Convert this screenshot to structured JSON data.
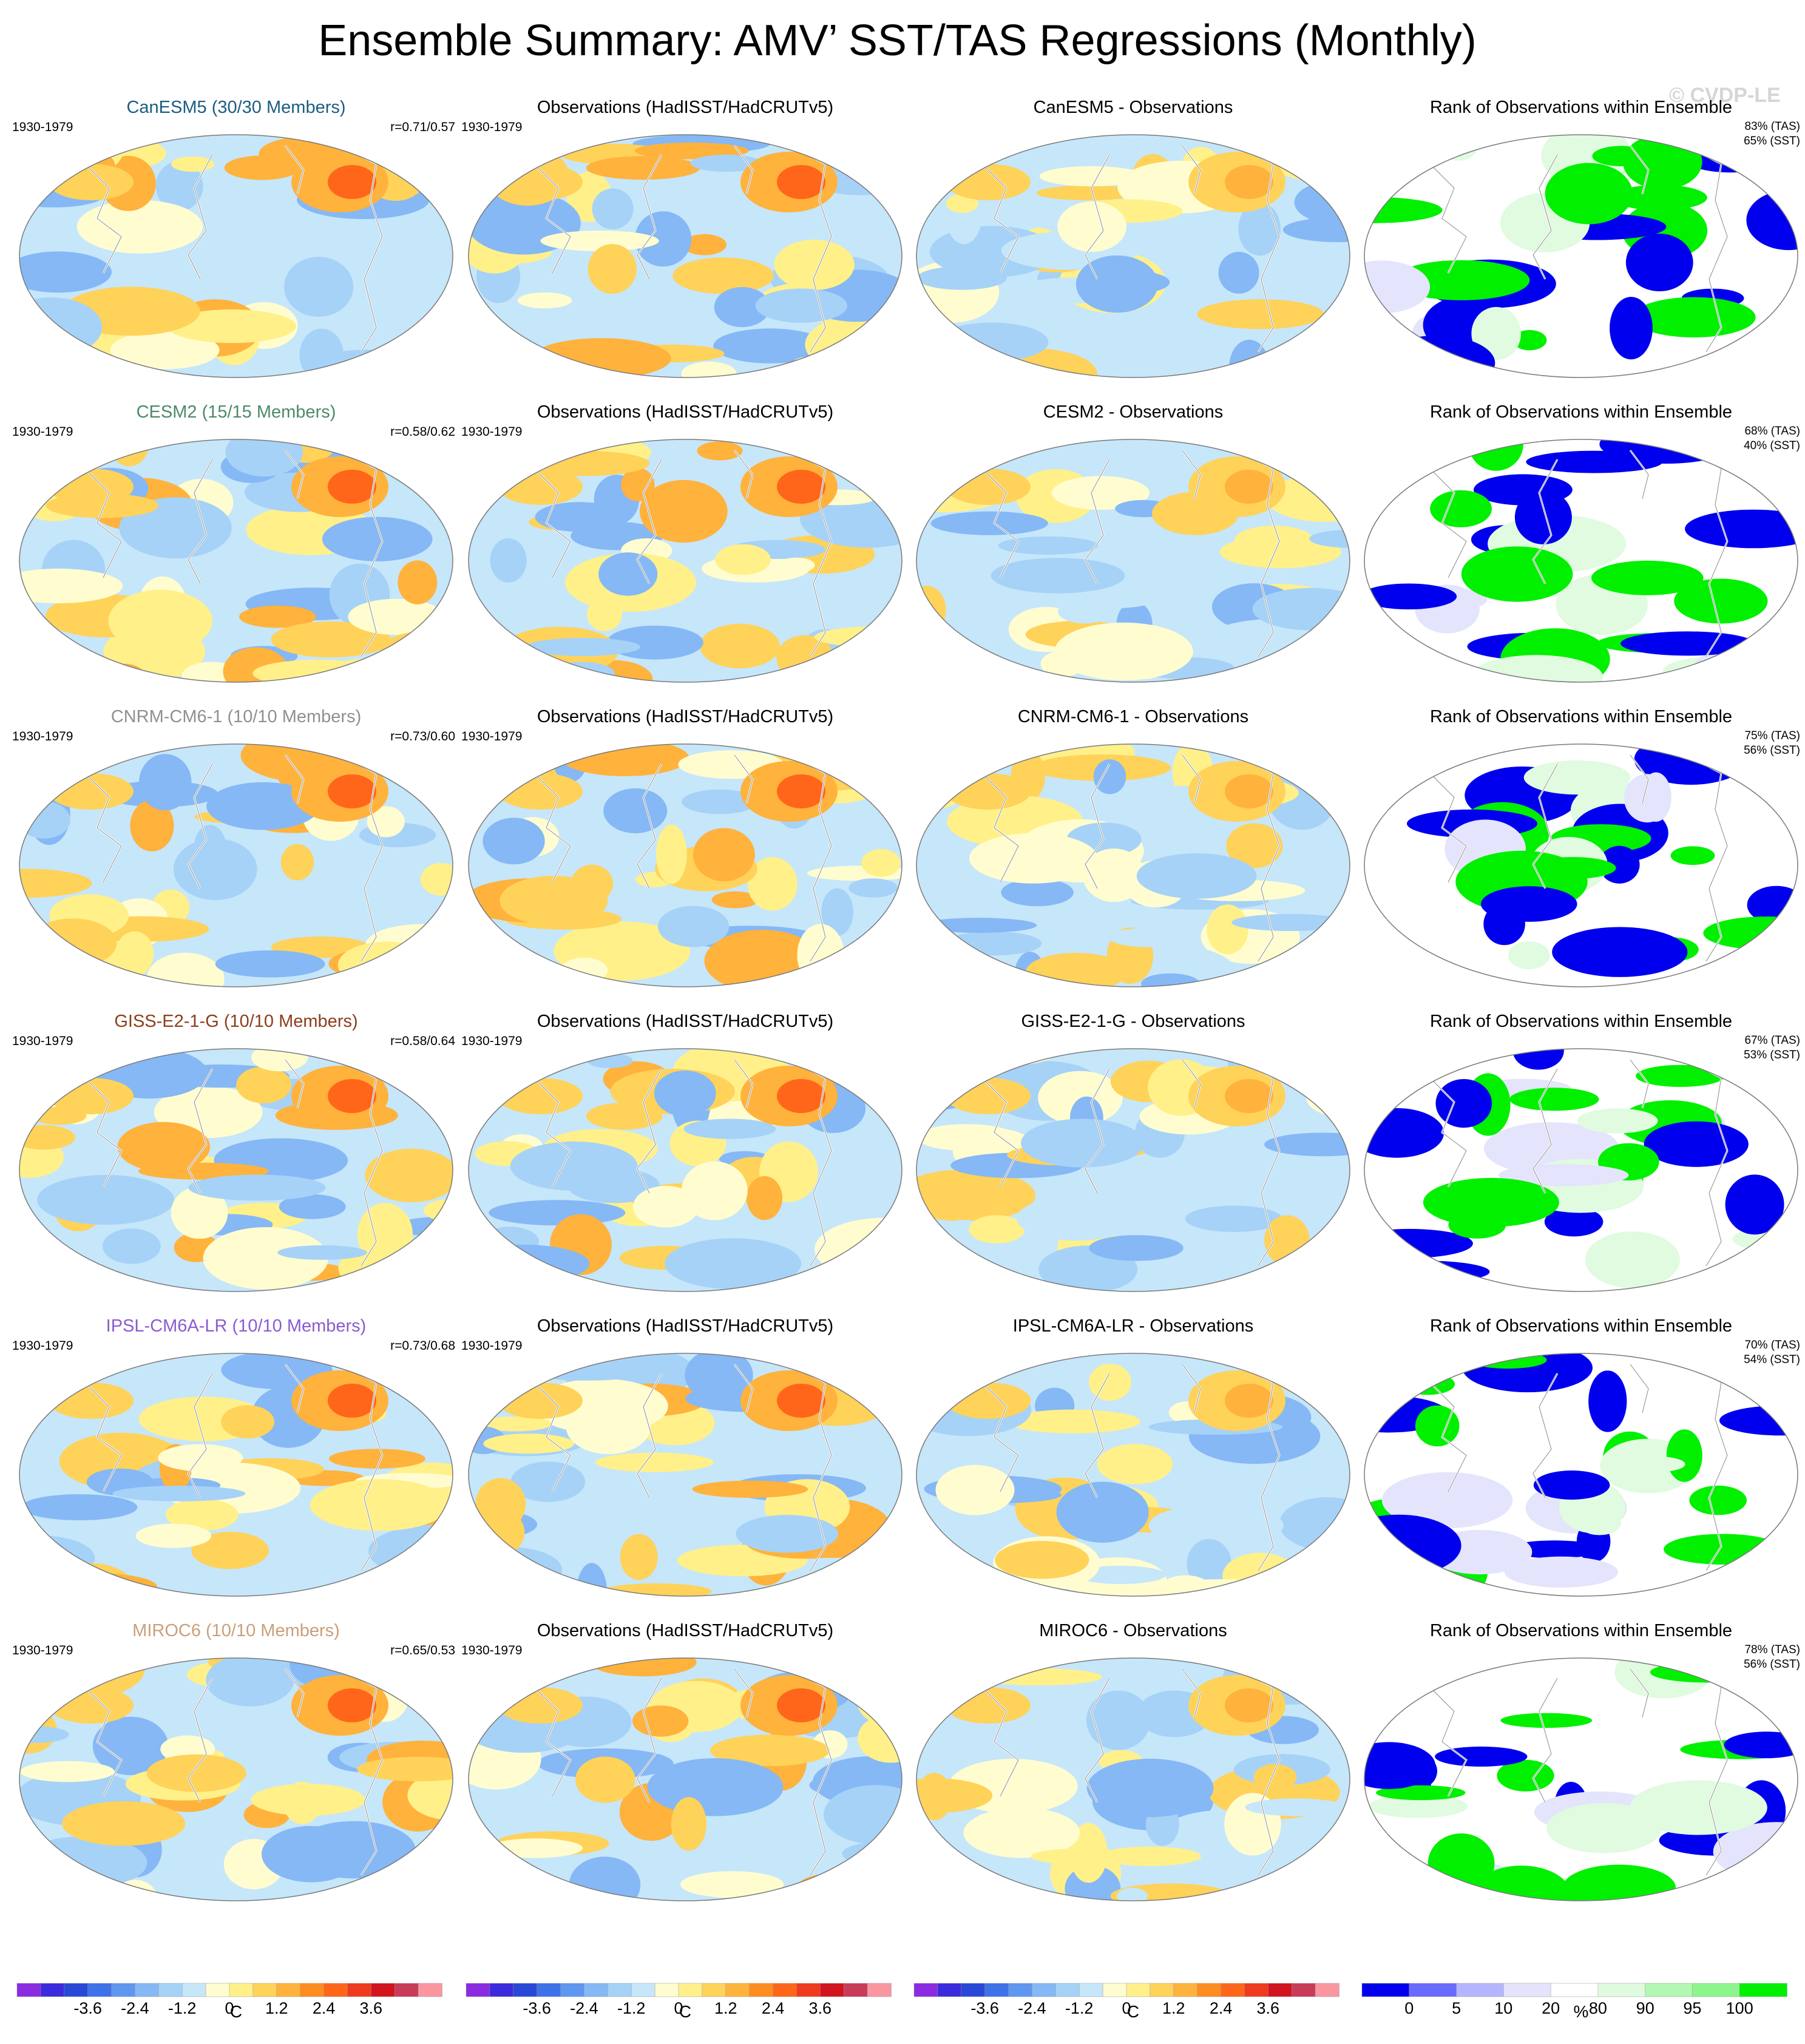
{
  "title": "Ensemble Summary: AMV’ SST/TAS Regressions (Monthly)",
  "watermark": "© CVDP-LE",
  "period": "1930-1979",
  "obs_title": "Observations (HadISST/HadCRUTv5)",
  "rank_title": "Rank of Observations within Ensemble",
  "models": [
    {
      "title": "CanESM5 (30/30 Members)",
      "color": "#1c5d80",
      "corr": "r=0.71/0.57",
      "diff_title": "CanESM5 - Observations",
      "rank_tas": "83% (TAS)",
      "rank_sst": "65% (SST)"
    },
    {
      "title": "CESM2 (15/15 Members)",
      "color": "#4d8a67",
      "corr": "r=0.58/0.62",
      "diff_title": "CESM2 - Observations",
      "rank_tas": "68% (TAS)",
      "rank_sst": "40% (SST)"
    },
    {
      "title": "CNRM-CM6-1 (10/10 Members)",
      "color": "#909090",
      "corr": "r=0.73/0.60",
      "diff_title": "CNRM-CM6-1 - Observations",
      "rank_tas": "75% (TAS)",
      "rank_sst": "56% (SST)"
    },
    {
      "title": "GISS-E2-1-G (10/10 Members)",
      "color": "#8c3e1c",
      "corr": "r=0.58/0.64",
      "diff_title": "GISS-E2-1-G - Observations",
      "rank_tas": "67% (TAS)",
      "rank_sst": "53% (SST)"
    },
    {
      "title": "IPSL-CM6A-LR (10/10 Members)",
      "color": "#8a5bd0",
      "corr": "r=0.73/0.68",
      "diff_title": "IPSL-CM6A-LR - Observations",
      "rank_tas": "70% (TAS)",
      "rank_sst": "54% (SST)"
    },
    {
      "title": "MIROC6 (10/10 Members)",
      "color": "#c9a07c",
      "corr": "r=0.65/0.53",
      "diff_title": "MIROC6 - Observations",
      "rank_tas": "78% (TAS)",
      "rank_sst": "56% (SST)"
    }
  ],
  "colorbars": {
    "temp_unit": "C",
    "temp_labels": [
      "-3.6",
      "-2.4",
      "-1.2",
      "0",
      "1.2",
      "2.4",
      "3.6"
    ],
    "temp_colors": [
      "#8a2be2",
      "#3b2bdc",
      "#2848d8",
      "#3e72e8",
      "#5f96f0",
      "#85b8f5",
      "#a6d2f7",
      "#c6e6fa",
      "#fffdd0",
      "#fff08a",
      "#ffd25a",
      "#ffb23c",
      "#ff8c1e",
      "#ff661a",
      "#f03a1e",
      "#d2141e",
      "#c83c5a",
      "#fa96a0"
    ],
    "rank_unit": "%",
    "rank_labels": [
      "0",
      "5",
      "10",
      "20",
      "80",
      "90",
      "95",
      "100"
    ],
    "rank_colors": [
      "#0000ee",
      "#6a6aff",
      "#b5b5ff",
      "#e4e4fc",
      "#ffffff",
      "#e0fbe0",
      "#b2f8b2",
      "#8cf68c",
      "#00f000"
    ]
  }
}
